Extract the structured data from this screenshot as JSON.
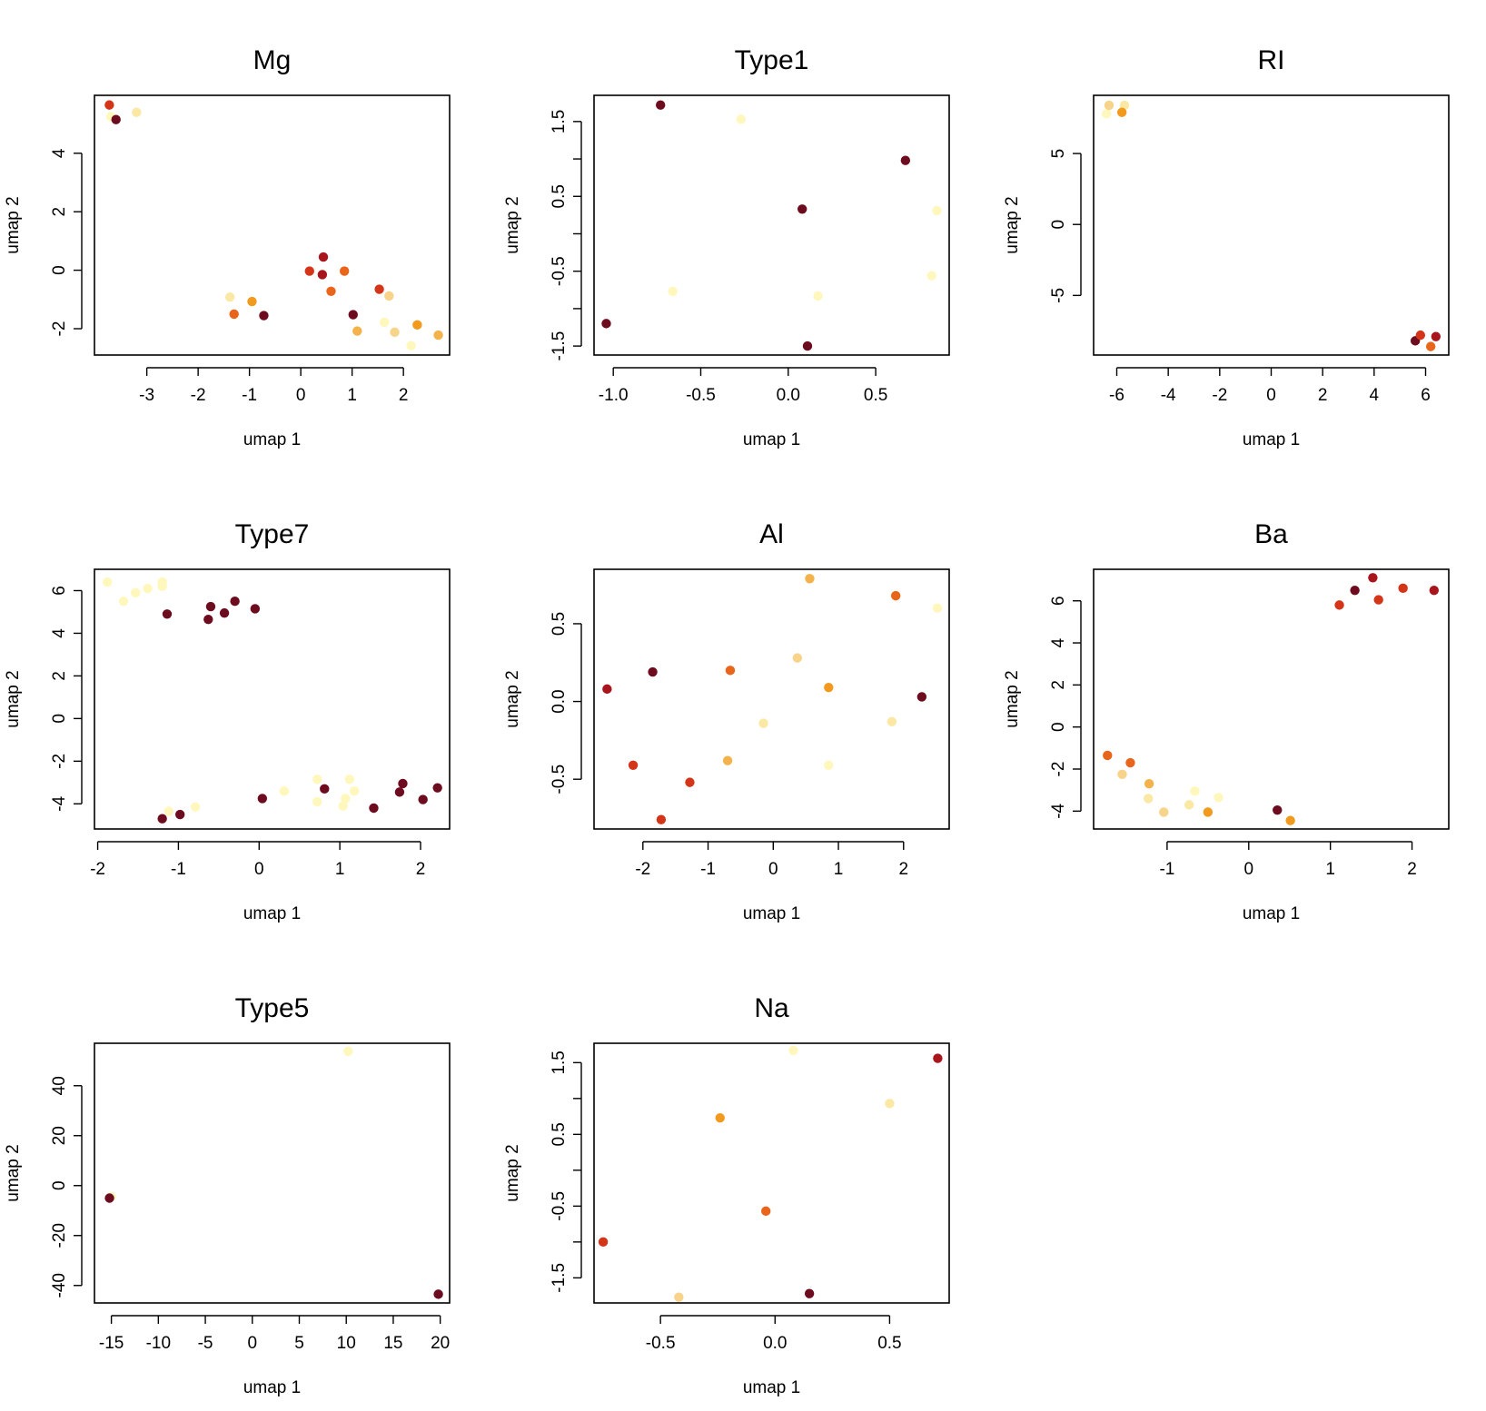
{
  "figure": {
    "xlabel": "umap 1",
    "ylabel": "umap 2"
  },
  "colors": {
    "c1": "#6e0c1f",
    "c2": "#a8151c",
    "c3": "#d43418",
    "c4": "#e9651b",
    "c5": "#f19a1e",
    "c6": "#f3b24b",
    "c7": "#f8d38a",
    "c8": "#fbe8a4",
    "c9": "#fff7bc"
  },
  "chart_data": [
    {
      "type": "scatter",
      "title": "Mg",
      "xlabel": "umap 1",
      "ylabel": "umap 2",
      "xlim": [
        -4.02,
        2.9
      ],
      "ylim": [
        -2.9,
        5.98
      ],
      "xticks": [
        -3,
        -2,
        -1,
        0,
        1,
        2
      ],
      "yticks": [
        -2,
        0,
        2,
        4
      ],
      "points": [
        {
          "x": -3.73,
          "y": 5.65,
          "c": "c3"
        },
        {
          "x": -3.7,
          "y": 5.25,
          "c": "c9"
        },
        {
          "x": -3.6,
          "y": 5.15,
          "c": "c1"
        },
        {
          "x": -3.2,
          "y": 5.4,
          "c": "c8"
        },
        {
          "x": -1.38,
          "y": -0.92,
          "c": "c8"
        },
        {
          "x": -1.3,
          "y": -1.5,
          "c": "c4"
        },
        {
          "x": -0.95,
          "y": -1.07,
          "c": "c5"
        },
        {
          "x": -0.72,
          "y": -1.55,
          "c": "c1"
        },
        {
          "x": 0.17,
          "y": -0.03,
          "c": "c3"
        },
        {
          "x": 0.42,
          "y": -0.15,
          "c": "c2"
        },
        {
          "x": 0.44,
          "y": 0.45,
          "c": "c2"
        },
        {
          "x": 0.59,
          "y": -0.72,
          "c": "c4"
        },
        {
          "x": 0.85,
          "y": -0.03,
          "c": "c4"
        },
        {
          "x": 1.02,
          "y": -1.52,
          "c": "c1"
        },
        {
          "x": 1.1,
          "y": -2.08,
          "c": "c6"
        },
        {
          "x": 1.53,
          "y": -0.65,
          "c": "c3"
        },
        {
          "x": 1.63,
          "y": -1.78,
          "c": "c9"
        },
        {
          "x": 1.72,
          "y": -0.88,
          "c": "c7"
        },
        {
          "x": 1.83,
          "y": -2.12,
          "c": "c7"
        },
        {
          "x": 2.15,
          "y": -2.58,
          "c": "c9"
        },
        {
          "x": 2.27,
          "y": -1.87,
          "c": "c5"
        },
        {
          "x": 2.68,
          "y": -2.22,
          "c": "c6"
        }
      ]
    },
    {
      "type": "scatter",
      "title": "Type1",
      "xlabel": "umap 1",
      "ylabel": "umap 2",
      "xlim": [
        -1.11,
        0.92
      ],
      "ylim": [
        -1.62,
        1.85
      ],
      "xticks": [
        -1.0,
        -0.5,
        0.0,
        0.5
      ],
      "xticklabels": [
        "-1.0",
        "-0.5",
        "0.0",
        "0.5"
      ],
      "yticks": [
        -1.5,
        -1.0,
        -0.5,
        0.0,
        0.5,
        1.0,
        1.5
      ],
      "yticklabels": [
        "-1.5",
        "",
        "-0.5",
        "",
        "0.5",
        "",
        "1.5"
      ],
      "points": [
        {
          "x": -1.04,
          "y": -1.2,
          "c": "c1"
        },
        {
          "x": -0.73,
          "y": 1.72,
          "c": "c1"
        },
        {
          "x": -0.66,
          "y": -0.77,
          "c": "c9"
        },
        {
          "x": -0.27,
          "y": 1.53,
          "c": "c9"
        },
        {
          "x": 0.08,
          "y": 0.33,
          "c": "c1"
        },
        {
          "x": 0.11,
          "y": -1.5,
          "c": "c1"
        },
        {
          "x": 0.17,
          "y": -0.83,
          "c": "c9"
        },
        {
          "x": 0.67,
          "y": 0.98,
          "c": "c1"
        },
        {
          "x": 0.82,
          "y": -0.56,
          "c": "c9"
        },
        {
          "x": 0.85,
          "y": 0.31,
          "c": "c9"
        }
      ]
    },
    {
      "type": "scatter",
      "title": "RI",
      "xlabel": "umap 1",
      "ylabel": "umap 2",
      "xlim": [
        -6.9,
        6.9
      ],
      "ylim": [
        -9.2,
        9.1
      ],
      "xticks": [
        -6,
        -4,
        -2,
        0,
        2,
        4,
        6
      ],
      "yticks": [
        -5,
        0,
        5
      ],
      "points": [
        {
          "x": -6.4,
          "y": 7.8,
          "c": "c9"
        },
        {
          "x": -6.3,
          "y": 8.4,
          "c": "c7"
        },
        {
          "x": -5.7,
          "y": 8.4,
          "c": "c8"
        },
        {
          "x": -5.8,
          "y": 7.9,
          "c": "c5"
        },
        {
          "x": 5.6,
          "y": -8.2,
          "c": "c1"
        },
        {
          "x": 5.8,
          "y": -7.8,
          "c": "c3"
        },
        {
          "x": 6.2,
          "y": -8.6,
          "c": "c4"
        },
        {
          "x": 6.4,
          "y": -7.9,
          "c": "c2"
        }
      ]
    },
    {
      "type": "scatter",
      "title": "Type7",
      "xlabel": "umap 1",
      "ylabel": "umap 2",
      "xlim": [
        -2.04,
        2.36
      ],
      "ylim": [
        -5.18,
        7.0
      ],
      "xticks": [
        -2,
        -1,
        0,
        1,
        2
      ],
      "yticks": [
        -4,
        -2,
        0,
        2,
        4,
        6
      ],
      "points": [
        {
          "x": -1.88,
          "y": 6.4,
          "c": "c9"
        },
        {
          "x": -1.68,
          "y": 5.5,
          "c": "c9"
        },
        {
          "x": -1.53,
          "y": 5.9,
          "c": "c9"
        },
        {
          "x": -1.38,
          "y": 6.1,
          "c": "c9"
        },
        {
          "x": -1.2,
          "y": 6.4,
          "c": "c9"
        },
        {
          "x": -1.2,
          "y": 6.2,
          "c": "c9"
        },
        {
          "x": -1.14,
          "y": 4.9,
          "c": "c1"
        },
        {
          "x": -0.63,
          "y": 4.65,
          "c": "c1"
        },
        {
          "x": -0.6,
          "y": 5.25,
          "c": "c1"
        },
        {
          "x": -0.43,
          "y": 4.95,
          "c": "c1"
        },
        {
          "x": -0.3,
          "y": 5.5,
          "c": "c1"
        },
        {
          "x": -0.05,
          "y": 5.15,
          "c": "c1"
        },
        {
          "x": -1.2,
          "y": -4.7,
          "c": "c1"
        },
        {
          "x": -1.12,
          "y": -4.35,
          "c": "c9"
        },
        {
          "x": -0.98,
          "y": -4.5,
          "c": "c1"
        },
        {
          "x": -0.79,
          "y": -4.15,
          "c": "c9"
        },
        {
          "x": 0.04,
          "y": -3.75,
          "c": "c1"
        },
        {
          "x": 0.31,
          "y": -3.4,
          "c": "c9"
        },
        {
          "x": 0.72,
          "y": -2.85,
          "c": "c9"
        },
        {
          "x": 0.72,
          "y": -3.9,
          "c": "c9"
        },
        {
          "x": 0.81,
          "y": -3.3,
          "c": "c1"
        },
        {
          "x": 1.04,
          "y": -4.1,
          "c": "c9"
        },
        {
          "x": 1.07,
          "y": -3.75,
          "c": "c9"
        },
        {
          "x": 1.12,
          "y": -2.85,
          "c": "c9"
        },
        {
          "x": 1.18,
          "y": -3.4,
          "c": "c9"
        },
        {
          "x": 1.42,
          "y": -4.2,
          "c": "c1"
        },
        {
          "x": 1.74,
          "y": -3.45,
          "c": "c1"
        },
        {
          "x": 1.78,
          "y": -3.05,
          "c": "c1"
        },
        {
          "x": 2.03,
          "y": -3.8,
          "c": "c1"
        },
        {
          "x": 2.21,
          "y": -3.25,
          "c": "c1"
        }
      ]
    },
    {
      "type": "scatter",
      "title": "Al",
      "xlabel": "umap 1",
      "ylabel": "umap 2",
      "xlim": [
        -2.75,
        2.7
      ],
      "ylim": [
        -0.82,
        0.85
      ],
      "xticks": [
        -2,
        -1,
        0,
        1,
        2
      ],
      "yticks": [
        -0.5,
        0.0,
        0.5
      ],
      "yticklabels": [
        "-0.5",
        "0.0",
        "0.5"
      ],
      "points": [
        {
          "x": -2.55,
          "y": 0.08,
          "c": "c2"
        },
        {
          "x": -2.15,
          "y": -0.41,
          "c": "c3"
        },
        {
          "x": -1.85,
          "y": 0.19,
          "c": "c1"
        },
        {
          "x": -1.72,
          "y": -0.76,
          "c": "c3"
        },
        {
          "x": -1.28,
          "y": -0.52,
          "c": "c3"
        },
        {
          "x": -0.7,
          "y": -0.38,
          "c": "c6"
        },
        {
          "x": -0.66,
          "y": 0.2,
          "c": "c4"
        },
        {
          "x": -0.15,
          "y": -0.14,
          "c": "c8"
        },
        {
          "x": 0.37,
          "y": 0.28,
          "c": "c7"
        },
        {
          "x": 0.56,
          "y": 0.79,
          "c": "c6"
        },
        {
          "x": 0.85,
          "y": 0.09,
          "c": "c5"
        },
        {
          "x": 0.85,
          "y": -0.41,
          "c": "c9"
        },
        {
          "x": 1.82,
          "y": -0.13,
          "c": "c8"
        },
        {
          "x": 1.88,
          "y": 0.68,
          "c": "c4"
        },
        {
          "x": 2.28,
          "y": 0.03,
          "c": "c1"
        },
        {
          "x": 2.52,
          "y": 0.6,
          "c": "c9"
        }
      ]
    },
    {
      "type": "scatter",
      "title": "Ba",
      "xlabel": "umap 1",
      "ylabel": "umap 2",
      "xlim": [
        -1.9,
        2.45
      ],
      "ylim": [
        -4.85,
        7.5
      ],
      "xticks": [
        -1,
        0,
        1,
        2
      ],
      "yticks": [
        -4,
        -2,
        0,
        2,
        4,
        6
      ],
      "points": [
        {
          "x": -1.73,
          "y": -1.35,
          "c": "c4"
        },
        {
          "x": -1.55,
          "y": -2.25,
          "c": "c7"
        },
        {
          "x": -1.45,
          "y": -1.7,
          "c": "c4"
        },
        {
          "x": -1.22,
          "y": -2.7,
          "c": "c6"
        },
        {
          "x": -1.23,
          "y": -3.4,
          "c": "c8"
        },
        {
          "x": -1.04,
          "y": -4.05,
          "c": "c7"
        },
        {
          "x": -0.73,
          "y": -3.7,
          "c": "c8"
        },
        {
          "x": -0.66,
          "y": -3.05,
          "c": "c9"
        },
        {
          "x": -0.37,
          "y": -3.35,
          "c": "c9"
        },
        {
          "x": -0.5,
          "y": -4.05,
          "c": "c5"
        },
        {
          "x": 0.35,
          "y": -3.95,
          "c": "c1"
        },
        {
          "x": 0.51,
          "y": -4.45,
          "c": "c5"
        },
        {
          "x": 1.11,
          "y": 5.8,
          "c": "c3"
        },
        {
          "x": 1.3,
          "y": 6.5,
          "c": "c1"
        },
        {
          "x": 1.52,
          "y": 7.1,
          "c": "c2"
        },
        {
          "x": 1.59,
          "y": 6.05,
          "c": "c3"
        },
        {
          "x": 1.89,
          "y": 6.6,
          "c": "c3"
        },
        {
          "x": 2.27,
          "y": 6.5,
          "c": "c2"
        }
      ]
    },
    {
      "type": "scatter",
      "title": "Type5",
      "xlabel": "umap 1",
      "ylabel": "umap 2",
      "xlim": [
        -16.8,
        21.0
      ],
      "ylim": [
        -47.0,
        57.0
      ],
      "xticks": [
        -15,
        -10,
        -5,
        0,
        5,
        10,
        15,
        20
      ],
      "yticks": [
        -40,
        -20,
        0,
        20,
        40
      ],
      "points": [
        {
          "x": -15.0,
          "y": -4.5,
          "c": "c9"
        },
        {
          "x": -15.2,
          "y": -5.0,
          "c": "c1"
        },
        {
          "x": 10.2,
          "y": 53.8,
          "c": "c9"
        },
        {
          "x": 19.8,
          "y": -43.5,
          "c": "c1"
        }
      ]
    },
    {
      "type": "scatter",
      "title": "Na",
      "xlabel": "umap 1",
      "ylabel": "umap 2",
      "xlim": [
        -0.79,
        0.76
      ],
      "ylim": [
        -1.85,
        1.77
      ],
      "xticks": [
        -0.5,
        0.0,
        0.5
      ],
      "xticklabels": [
        "-0.5",
        "0.0",
        "0.5"
      ],
      "yticks": [
        -1.5,
        -1.0,
        -0.5,
        0.0,
        0.5,
        1.0,
        1.5
      ],
      "yticklabels": [
        "-1.5",
        "",
        "-0.5",
        "",
        "0.5",
        "",
        "1.5"
      ],
      "points": [
        {
          "x": -0.75,
          "y": -1.0,
          "c": "c3"
        },
        {
          "x": -0.42,
          "y": -1.77,
          "c": "c7"
        },
        {
          "x": -0.24,
          "y": 0.73,
          "c": "c5"
        },
        {
          "x": -0.04,
          "y": -0.57,
          "c": "c4"
        },
        {
          "x": 0.08,
          "y": 1.67,
          "c": "c9"
        },
        {
          "x": 0.15,
          "y": -1.72,
          "c": "c1"
        },
        {
          "x": 0.5,
          "y": 0.93,
          "c": "c8"
        },
        {
          "x": 0.71,
          "y": 1.56,
          "c": "c2"
        }
      ]
    }
  ]
}
